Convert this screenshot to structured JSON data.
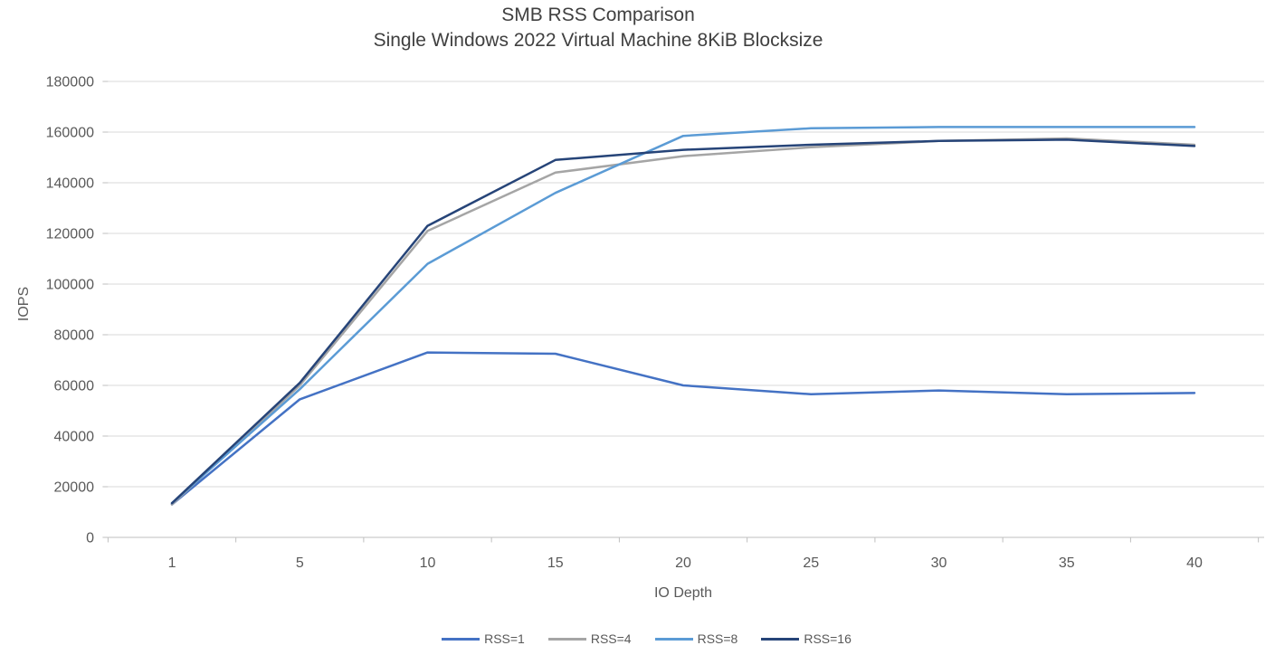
{
  "chart_data": {
    "type": "line",
    "title": "SMB RSS Comparison",
    "subtitle": "Single Windows 2022 Virtual Machine 8KiB Blocksize",
    "xlabel": "IO Depth",
    "ylabel": "IOPS",
    "categories": [
      1,
      5,
      10,
      15,
      20,
      25,
      30,
      35,
      40
    ],
    "ylim": [
      0,
      180000
    ],
    "ytick_step": 20000,
    "ytick_labels": [
      "0",
      "20000",
      "40000",
      "60000",
      "80000",
      "100000",
      "120000",
      "140000",
      "160000",
      "180000"
    ],
    "grid": true,
    "legend_position": "bottom",
    "series": [
      {
        "name": "RSS=1",
        "color": "#4472C4",
        "values": [
          13000,
          54500,
          73000,
          72500,
          60000,
          56500,
          58000,
          56500,
          57000
        ]
      },
      {
        "name": "RSS=4",
        "color": "#A5A5A5",
        "values": [
          13000,
          60000,
          121000,
          144000,
          150500,
          154000,
          156500,
          157500,
          155000
        ]
      },
      {
        "name": "RSS=8",
        "color": "#5B9BD5",
        "values": [
          13500,
          58500,
          108000,
          136000,
          158500,
          161500,
          162000,
          162000,
          162000
        ]
      },
      {
        "name": "RSS=16",
        "color": "#264478",
        "values": [
          13500,
          61000,
          123000,
          149000,
          153000,
          155000,
          156500,
          157000,
          154500
        ]
      }
    ]
  },
  "colors": {
    "background": "#FFFFFF",
    "title_text": "#404040",
    "axis_text": "#595959",
    "gridline": "#D9D9D9",
    "axis_line": "#BFBFBF"
  }
}
